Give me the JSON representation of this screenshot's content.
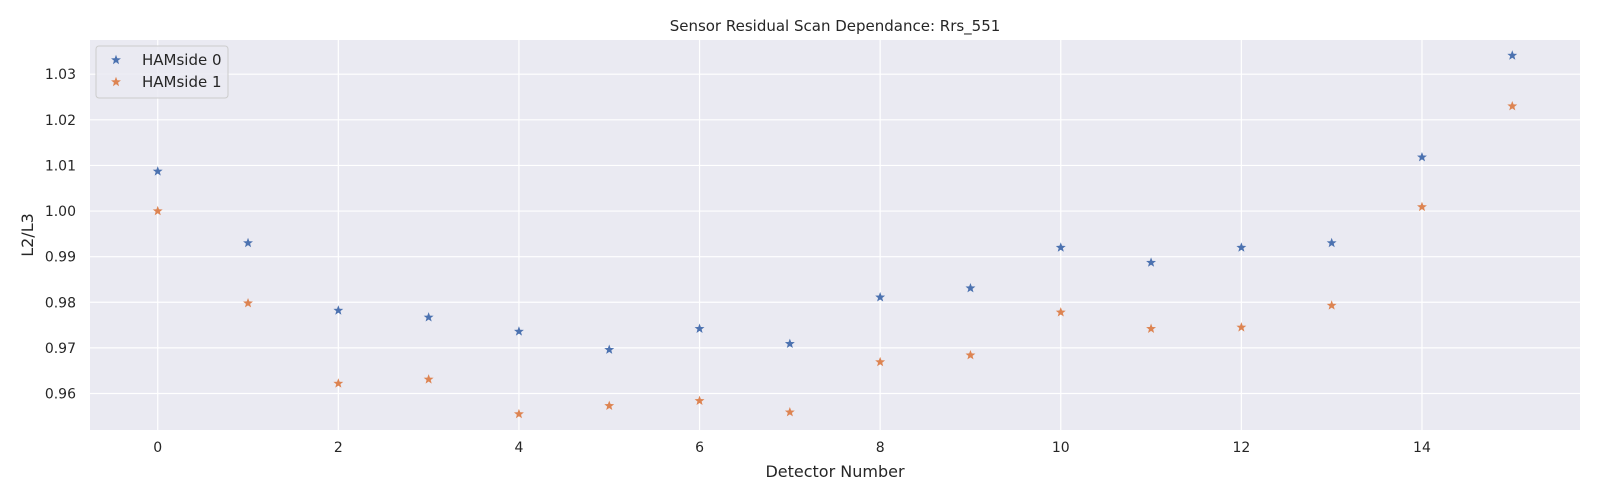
{
  "chart_data": {
    "type": "scatter",
    "title": "Sensor Residual Scan Dependance: Rrs_551",
    "xlabel": "Detector Number",
    "ylabel": "L2/L3",
    "xlim": [
      -0.75,
      15.75
    ],
    "ylim": [
      0.952,
      1.0375
    ],
    "x_ticks": [
      0,
      2,
      4,
      6,
      8,
      10,
      12,
      14
    ],
    "y_ticks": [
      0.96,
      0.97,
      0.98,
      0.99,
      1.0,
      1.01,
      1.02,
      1.03
    ],
    "y_tick_labels": [
      "0.96",
      "0.97",
      "0.98",
      "0.99",
      "1.00",
      "1.01",
      "1.02",
      "1.03"
    ],
    "grid": true,
    "legend_position": "top-left",
    "marker": "star",
    "x": [
      0,
      1,
      2,
      3,
      4,
      5,
      6,
      7,
      8,
      9,
      10,
      11,
      12,
      13,
      14,
      15
    ],
    "series": [
      {
        "name": "HAMside 0",
        "color": "#4c72b0",
        "values": [
          1.0087,
          0.993,
          0.9782,
          0.9767,
          0.9736,
          0.9696,
          0.9742,
          0.9709,
          0.9811,
          0.9831,
          0.992,
          0.9887,
          0.992,
          0.993,
          1.0118,
          1.0341
        ]
      },
      {
        "name": "HAMside 1",
        "color": "#dd8452",
        "values": [
          1.0,
          0.9798,
          0.9622,
          0.9631,
          0.9555,
          0.9573,
          0.9584,
          0.9559,
          0.9669,
          0.9684,
          0.9778,
          0.9742,
          0.9745,
          0.9793,
          1.0009,
          1.023
        ]
      }
    ]
  }
}
